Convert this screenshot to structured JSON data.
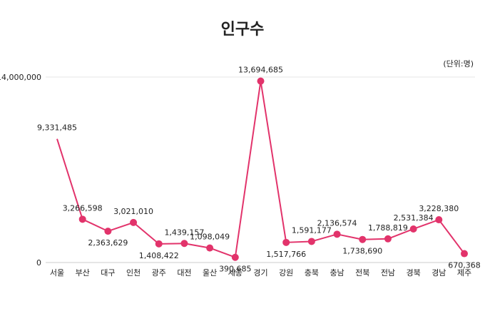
{
  "chart_data": {
    "type": "line",
    "title": "인구수",
    "unit_note": "(단위:명)",
    "ylim": [
      0,
      14000000
    ],
    "y_ticks": [
      {
        "value": 0,
        "label": "0"
      },
      {
        "value": 14000000,
        "label": "14,000,000"
      }
    ],
    "grid": "horizontal",
    "categories": [
      "서울",
      "부산",
      "대구",
      "인천",
      "광주",
      "대전",
      "울산",
      "세종",
      "경기",
      "강원",
      "충북",
      "충남",
      "전북",
      "전남",
      "경북",
      "경남",
      "제주"
    ],
    "series": [
      {
        "values": [
          9331485,
          3266598,
          2363629,
          3021010,
          1408422,
          1439157,
          1098049,
          390685,
          13694685,
          1517766,
          1591177,
          2136574,
          1738690,
          1788819,
          2531384,
          3228380,
          670368
        ],
        "value_labels": [
          "9,331,485",
          "3,266,598",
          "2,363,629",
          "3,021,010",
          "1,408,422",
          "1,439,157",
          "1,098,049",
          "390,685",
          "13,694,685",
          "1,517,766",
          "1,591,177",
          "2,136,574",
          "1,738,690",
          "1,788,819",
          "2,531,384",
          "3,228,380",
          "670,368"
        ]
      }
    ],
    "colors": {
      "line": "#e2336b",
      "grid": "#e6e6e6",
      "axis": "#cccccc"
    }
  }
}
